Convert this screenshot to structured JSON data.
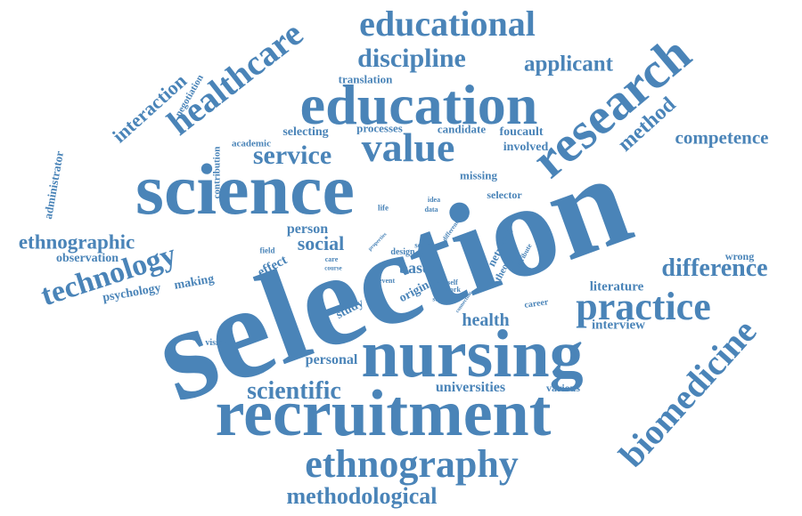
{
  "accent_color": "#4a84b8",
  "words": [
    "selection",
    "nursing",
    "recruitment",
    "science",
    "education",
    "research",
    "ethnography",
    "practice",
    "value",
    "biomedicine",
    "educational",
    "healthcare",
    "technology",
    "discipline",
    "methodological",
    "difference",
    "service",
    "scientific",
    "ethnographic",
    "applicant",
    "competence",
    "method",
    "interaction",
    "social",
    "health",
    "universities",
    "based",
    "literature",
    "interview",
    "personal",
    "person",
    "observation",
    "psychology",
    "making",
    "effect",
    "study",
    "processes",
    "candidate",
    "foucault",
    "involved",
    "missing",
    "selector",
    "selecting",
    "translation",
    "academic",
    "contribution",
    "negotiation",
    "administrator",
    "various",
    "wrong",
    "visible",
    "network",
    "theory",
    "career",
    "life",
    "idea",
    "data",
    "field",
    "care",
    "course",
    "design",
    "series",
    "actor",
    "event",
    "original",
    "self",
    "work",
    "staff",
    "attribute",
    "different",
    "connection",
    "properties"
  ]
}
